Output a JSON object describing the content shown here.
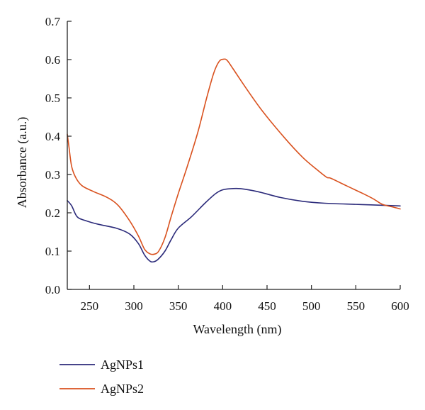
{
  "chart_data": {
    "type": "line",
    "xlabel": "Wavelength (nm)",
    "ylabel": "Absorbance (a.u.)",
    "xlim": [
      225,
      600
    ],
    "ylim": [
      0,
      0.7
    ],
    "x_ticks": [
      250,
      300,
      350,
      400,
      450,
      500,
      550,
      600
    ],
    "x_tick_labels": [
      "250",
      "300",
      "350",
      "400",
      "450",
      "500",
      "550",
      "600"
    ],
    "y_ticks": [
      0,
      0.1,
      0.2,
      0.3,
      0.4,
      0.5,
      0.6,
      0.7
    ],
    "y_tick_labels": [
      "0.0",
      "0.1",
      "0.2",
      "0.3",
      "0.4",
      "0.5",
      "0.6",
      "0.7"
    ],
    "grid": false,
    "legend_position": "bottom-left, below plot",
    "series": [
      {
        "name": "AgNPs1",
        "color": "#2b2a7a",
        "points": [
          [
            225,
            0.232
          ],
          [
            230,
            0.218
          ],
          [
            236,
            0.19
          ],
          [
            245,
            0.18
          ],
          [
            260,
            0.17
          ],
          [
            280,
            0.16
          ],
          [
            295,
            0.145
          ],
          [
            305,
            0.12
          ],
          [
            312,
            0.09
          ],
          [
            318,
            0.074
          ],
          [
            322,
            0.072
          ],
          [
            327,
            0.078
          ],
          [
            335,
            0.1
          ],
          [
            342,
            0.13
          ],
          [
            350,
            0.16
          ],
          [
            365,
            0.19
          ],
          [
            380,
            0.225
          ],
          [
            392,
            0.25
          ],
          [
            400,
            0.26
          ],
          [
            410,
            0.263
          ],
          [
            420,
            0.263
          ],
          [
            440,
            0.255
          ],
          [
            465,
            0.24
          ],
          [
            490,
            0.23
          ],
          [
            515,
            0.225
          ],
          [
            550,
            0.222
          ],
          [
            575,
            0.22
          ],
          [
            600,
            0.218
          ]
        ]
      },
      {
        "name": "AgNPs2",
        "color": "#d9511e",
        "points": [
          [
            225,
            0.405
          ],
          [
            227,
            0.37
          ],
          [
            230,
            0.32
          ],
          [
            235,
            0.29
          ],
          [
            242,
            0.27
          ],
          [
            255,
            0.255
          ],
          [
            270,
            0.24
          ],
          [
            282,
            0.22
          ],
          [
            295,
            0.18
          ],
          [
            305,
            0.14
          ],
          [
            312,
            0.105
          ],
          [
            318,
            0.093
          ],
          [
            323,
            0.092
          ],
          [
            328,
            0.1
          ],
          [
            335,
            0.135
          ],
          [
            342,
            0.19
          ],
          [
            350,
            0.25
          ],
          [
            360,
            0.32
          ],
          [
            372,
            0.41
          ],
          [
            382,
            0.5
          ],
          [
            390,
            0.565
          ],
          [
            396,
            0.595
          ],
          [
            401,
            0.601
          ],
          [
            405,
            0.598
          ],
          [
            412,
            0.575
          ],
          [
            425,
            0.53
          ],
          [
            445,
            0.465
          ],
          [
            470,
            0.395
          ],
          [
            490,
            0.345
          ],
          [
            505,
            0.315
          ],
          [
            517,
            0.293
          ],
          [
            522,
            0.29
          ],
          [
            540,
            0.27
          ],
          [
            560,
            0.248
          ],
          [
            570,
            0.236
          ],
          [
            580,
            0.222
          ],
          [
            592,
            0.215
          ],
          [
            600,
            0.21
          ]
        ]
      }
    ]
  }
}
